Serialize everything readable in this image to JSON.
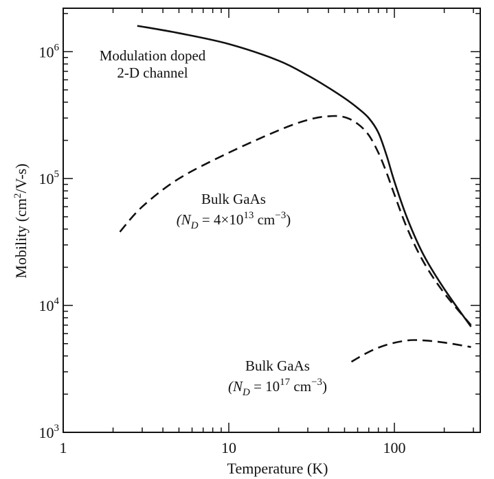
{
  "chart_data": {
    "type": "line",
    "xlabel": "Temperature (K)",
    "ylabel": "Mobility (cm2/V-s)",
    "x_scale": "log",
    "y_scale": "log",
    "xlim": [
      1,
      330
    ],
    "ylim": [
      1000,
      2200000
    ],
    "x_ticks": [
      {
        "value": 1,
        "label": "1"
      },
      {
        "value": 10,
        "label": "10"
      },
      {
        "value": 100,
        "label": "100"
      }
    ],
    "y_ticks": [
      {
        "value": 1000,
        "base": "10",
        "exp": "3"
      },
      {
        "value": 10000,
        "base": "10",
        "exp": "4"
      },
      {
        "value": 100000,
        "base": "10",
        "exp": "5"
      },
      {
        "value": 1000000,
        "base": "10",
        "exp": "6"
      }
    ],
    "grid": false,
    "series": [
      {
        "style": "solid",
        "color": "#111111",
        "points": [
          [
            2.8,
            1600000
          ],
          [
            5,
            1400000
          ],
          [
            10,
            1150000
          ],
          [
            20,
            850000
          ],
          [
            30,
            650000
          ],
          [
            40,
            520000
          ],
          [
            50,
            430000
          ],
          [
            60,
            360000
          ],
          [
            70,
            300000
          ],
          [
            80,
            230000
          ],
          [
            90,
            150000
          ],
          [
            100,
            95000
          ],
          [
            120,
            48000
          ],
          [
            150,
            25000
          ],
          [
            200,
            13500
          ],
          [
            290,
            6800
          ]
        ]
      },
      {
        "style": "dashed",
        "color": "#111111",
        "points": [
          [
            2.2,
            38000
          ],
          [
            3,
            60000
          ],
          [
            5,
            100000
          ],
          [
            10,
            160000
          ],
          [
            20,
            240000
          ],
          [
            30,
            290000
          ],
          [
            40,
            310000
          ],
          [
            50,
            305000
          ],
          [
            60,
            270000
          ],
          [
            70,
            220000
          ],
          [
            80,
            160000
          ],
          [
            90,
            110000
          ],
          [
            100,
            75000
          ],
          [
            120,
            40000
          ],
          [
            150,
            22000
          ],
          [
            200,
            12500
          ],
          [
            290,
            7000
          ]
        ]
      },
      {
        "style": "dashed",
        "color": "#111111",
        "points": [
          [
            55,
            3600
          ],
          [
            70,
            4300
          ],
          [
            90,
            4900
          ],
          [
            120,
            5300
          ],
          [
            150,
            5300
          ],
          [
            200,
            5100
          ],
          [
            290,
            4700
          ]
        ]
      }
    ],
    "annotations": [
      {
        "id": "mod",
        "lines": [
          "Modulation doped",
          "2-D channel"
        ]
      },
      {
        "id": "bulk1",
        "title": "Bulk GaAs",
        "formula": {
          "lhs": "(N",
          "sub": "D",
          "mid": " = 4×10",
          "sup": "13",
          "unit": " cm",
          "unit_sup": "−3",
          "close": ")"
        }
      },
      {
        "id": "bulk2",
        "title": "Bulk GaAs",
        "formula": {
          "lhs": "(N",
          "sub": "D",
          "mid": " = 10",
          "sup": "17",
          "unit": " cm",
          "unit_sup": "−3",
          "close": ")"
        }
      }
    ]
  }
}
